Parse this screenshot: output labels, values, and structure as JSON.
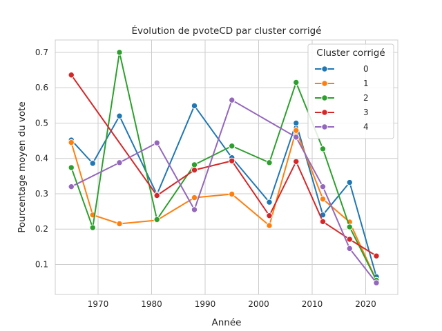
{
  "chart_data": {
    "type": "line",
    "title": "Évolution de pvoteCD par cluster corrigé",
    "xlabel": "Année",
    "ylabel": "Pourcentage moyen du vote",
    "xlim": [
      1962,
      2026
    ],
    "ylim": [
      0.015,
      0.735
    ],
    "xticks": [
      1970,
      1980,
      1990,
      2000,
      2010,
      2020
    ],
    "yticks": [
      0.1,
      0.2,
      0.3,
      0.4,
      0.5,
      0.6,
      0.7
    ],
    "grid": true,
    "legend": {
      "title": "Cluster corrigé",
      "placement": "top-right"
    },
    "series": [
      {
        "name": "0",
        "color": "#1f77b4",
        "x": [
          1965,
          1969,
          1974,
          1981,
          1988,
          1995,
          2002,
          2007,
          2012,
          2017,
          2022
        ],
        "y": [
          0.452,
          0.386,
          0.52,
          0.298,
          0.549,
          0.402,
          0.276,
          0.5,
          0.24,
          0.332,
          0.065
        ]
      },
      {
        "name": "1",
        "color": "#ff7f0e",
        "x": [
          1965,
          1969,
          1974,
          1981,
          1988,
          1995,
          2002,
          2007,
          2012,
          2017,
          2022
        ],
        "y": [
          0.445,
          0.24,
          0.215,
          0.225,
          0.289,
          0.299,
          0.21,
          0.479,
          0.285,
          0.22,
          0.055
        ]
      },
      {
        "name": "2",
        "color": "#2ca02c",
        "x": [
          1965,
          1969,
          1974,
          1981,
          1988,
          1995,
          2002,
          2007,
          2012,
          2017,
          2022
        ],
        "y": [
          0.374,
          0.204,
          0.7,
          0.227,
          0.382,
          0.435,
          0.388,
          0.615,
          0.427,
          0.206,
          0.055
        ]
      },
      {
        "name": "3",
        "color": "#d62728",
        "x": [
          1965,
          1981,
          1988,
          1995,
          2002,
          2007,
          2012,
          2017,
          2022
        ],
        "y": [
          0.636,
          0.295,
          0.367,
          0.393,
          0.238,
          0.391,
          0.221,
          0.171,
          0.124
        ]
      },
      {
        "name": "4",
        "color": "#9467bd",
        "x": [
          1965,
          1974,
          1981,
          1988,
          1995,
          2007,
          2012,
          2017,
          2022
        ],
        "y": [
          0.32,
          0.388,
          0.444,
          0.255,
          0.565,
          0.46,
          0.32,
          0.145,
          0.048
        ]
      }
    ]
  }
}
